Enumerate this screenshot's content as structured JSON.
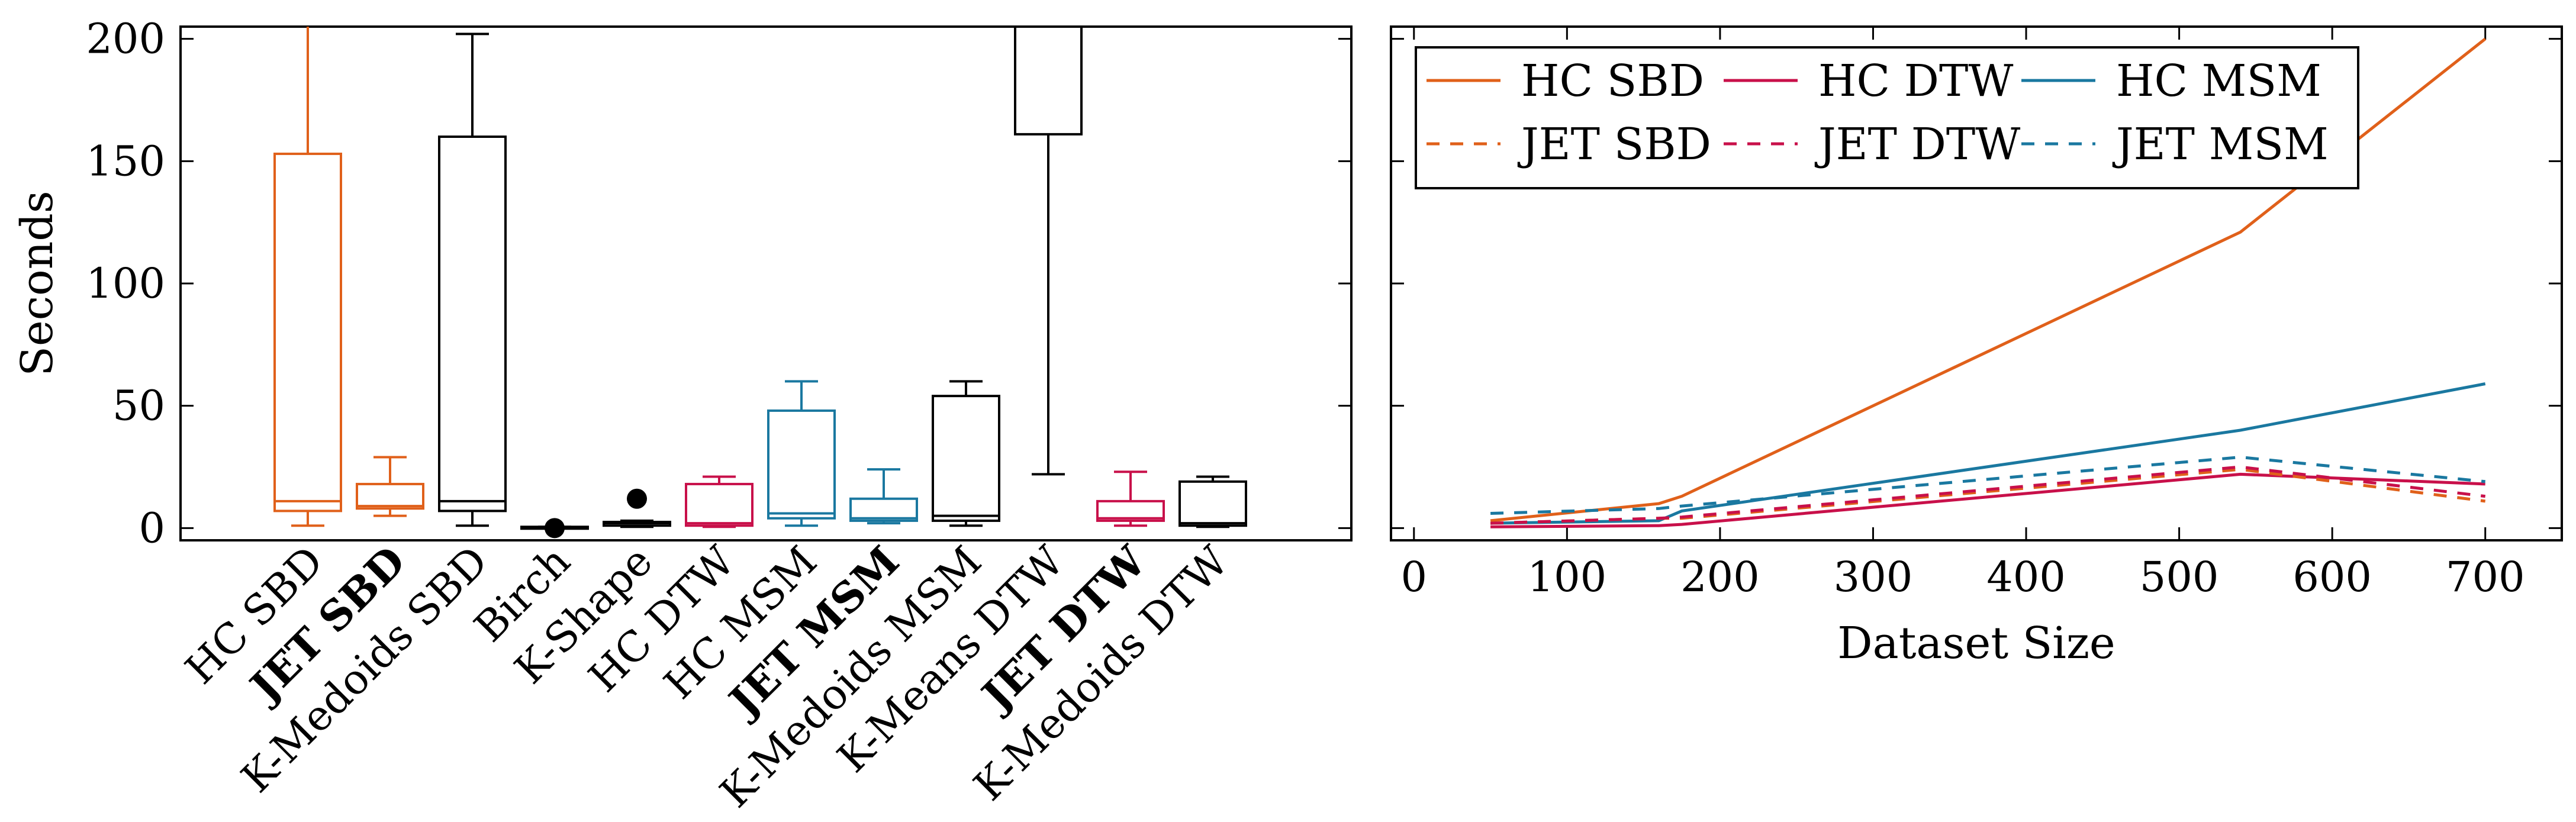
{
  "colors": {
    "sbd": "#e0601a",
    "dtw": "#c8104a",
    "msm": "#1a78a0",
    "other": "#000000"
  },
  "chart_data": [
    {
      "type": "boxplot",
      "ylabel": "Seconds",
      "ylim": [
        -5,
        205
      ],
      "yticks": [
        0,
        50,
        100,
        150,
        200
      ],
      "boxes": [
        {
          "label": "HC SBD",
          "bold": false,
          "color": "sbd",
          "whisker_low": 1,
          "q1": 7,
          "median": 11,
          "q3": 153,
          "whisker_high": 205,
          "outliers": []
        },
        {
          "label": "JET SBD",
          "bold": true,
          "color": "sbd",
          "whisker_low": 5,
          "q1": 8,
          "median": 9,
          "q3": 18,
          "whisker_high": 29,
          "outliers": []
        },
        {
          "label": "K-Medoids SBD",
          "bold": false,
          "color": "other",
          "whisker_low": 1,
          "q1": 7,
          "median": 11,
          "q3": 160,
          "whisker_high": 202,
          "outliers": []
        },
        {
          "label": "Birch",
          "bold": false,
          "color": "other",
          "whisker_low": 0,
          "q1": 0,
          "median": 0,
          "q3": 0.5,
          "whisker_high": 0.5,
          "outliers": [
            0
          ]
        },
        {
          "label": "K-Shape",
          "bold": false,
          "color": "other",
          "whisker_low": 0.5,
          "q1": 1,
          "median": 2,
          "q3": 2.5,
          "whisker_high": 3,
          "outliers": [
            12
          ]
        },
        {
          "label": "HC DTW",
          "bold": false,
          "color": "dtw",
          "whisker_low": 0.5,
          "q1": 1,
          "median": 2,
          "q3": 18,
          "whisker_high": 21,
          "outliers": []
        },
        {
          "label": "HC MSM",
          "bold": false,
          "color": "msm",
          "whisker_low": 1,
          "q1": 4,
          "median": 6,
          "q3": 48,
          "whisker_high": 60,
          "outliers": []
        },
        {
          "label": "JET MSM",
          "bold": true,
          "color": "msm",
          "whisker_low": 2,
          "q1": 3,
          "median": 4,
          "q3": 12,
          "whisker_high": 24,
          "outliers": []
        },
        {
          "label": "K-Medoids MSM",
          "bold": false,
          "color": "other",
          "whisker_low": 1,
          "q1": 3,
          "median": 5,
          "q3": 54,
          "whisker_high": 60,
          "outliers": []
        },
        {
          "label": "K-Means DTW",
          "bold": false,
          "color": "other",
          "whisker_low": 22,
          "q1": 161,
          "median": 205,
          "q3": 205,
          "whisker_high": 205,
          "outliers": []
        },
        {
          "label": "JET DTW",
          "bold": true,
          "color": "dtw",
          "whisker_low": 1,
          "q1": 3,
          "median": 4,
          "q3": 11,
          "whisker_high": 23,
          "outliers": []
        },
        {
          "label": "K-Medoids DTW",
          "bold": false,
          "color": "other",
          "whisker_low": 0.5,
          "q1": 1,
          "median": 2,
          "q3": 19,
          "whisker_high": 21,
          "outliers": []
        }
      ]
    },
    {
      "type": "line",
      "xlabel": "Dataset Size",
      "xlim": [
        -15,
        750
      ],
      "ylim": [
        -5,
        205
      ],
      "xticks": [
        0,
        100,
        200,
        300,
        400,
        500,
        600,
        700
      ],
      "legend_position": "top-left",
      "series": [
        {
          "name": "HC SBD",
          "color": "sbd",
          "dashed": false,
          "x": [
            50,
            160,
            175,
            540,
            700
          ],
          "y": [
            3,
            10,
            13,
            121,
            200
          ]
        },
        {
          "name": "HC DTW",
          "color": "dtw",
          "dashed": false,
          "x": [
            50,
            160,
            175,
            540,
            700
          ],
          "y": [
            0.5,
            1,
            1.5,
            22,
            18
          ]
        },
        {
          "name": "HC MSM",
          "color": "msm",
          "dashed": false,
          "x": [
            50,
            160,
            175,
            540,
            700
          ],
          "y": [
            2,
            3,
            7,
            40,
            59
          ]
        },
        {
          "name": "JET SBD",
          "color": "sbd",
          "dashed": true,
          "x": [
            50,
            160,
            175,
            540,
            700
          ],
          "y": [
            2,
            4,
            4,
            24,
            11
          ]
        },
        {
          "name": "JET DTW",
          "color": "dtw",
          "dashed": true,
          "x": [
            50,
            160,
            175,
            540,
            700
          ],
          "y": [
            2,
            4,
            4.5,
            25,
            13
          ]
        },
        {
          "name": "JET MSM",
          "color": "msm",
          "dashed": true,
          "x": [
            50,
            160,
            175,
            540,
            700
          ],
          "y": [
            6,
            8,
            9,
            29,
            19
          ]
        }
      ]
    }
  ]
}
